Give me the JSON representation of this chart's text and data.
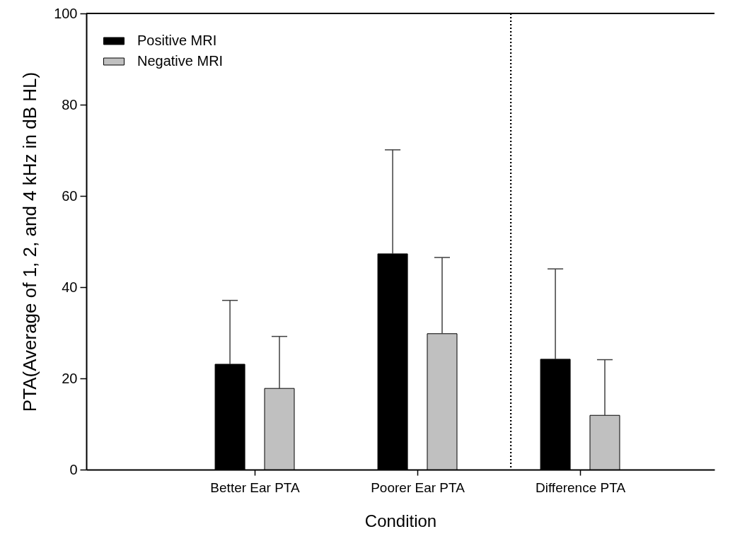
{
  "chart_data": {
    "type": "bar",
    "xlabel": "Condition",
    "ylabel": "PTA(Average of 1, 2, and 4 kHz in dB HL)",
    "categories": [
      "Better Ear PTA",
      "Poorer Ear PTA",
      "Difference PTA"
    ],
    "series": [
      {
        "name": "Positive MRI",
        "color": "#000000",
        "values": [
          23.1,
          47.3,
          24.2
        ],
        "errors": [
          [
            23.1,
            37.1
          ],
          [
            47.3,
            70.1
          ],
          [
            24.2,
            44.0
          ]
        ]
      },
      {
        "name": "Negative MRI",
        "color": "#c0c0c0",
        "values": [
          17.8,
          29.8,
          11.9
        ],
        "errors": [
          [
            17.8,
            29.2
          ],
          [
            29.8,
            46.5
          ],
          [
            11.9,
            24.1
          ]
        ]
      }
    ],
    "ylim": [
      0,
      100
    ],
    "yticks": [
      0,
      20,
      40,
      60,
      80,
      100
    ],
    "legend": "top left"
  }
}
